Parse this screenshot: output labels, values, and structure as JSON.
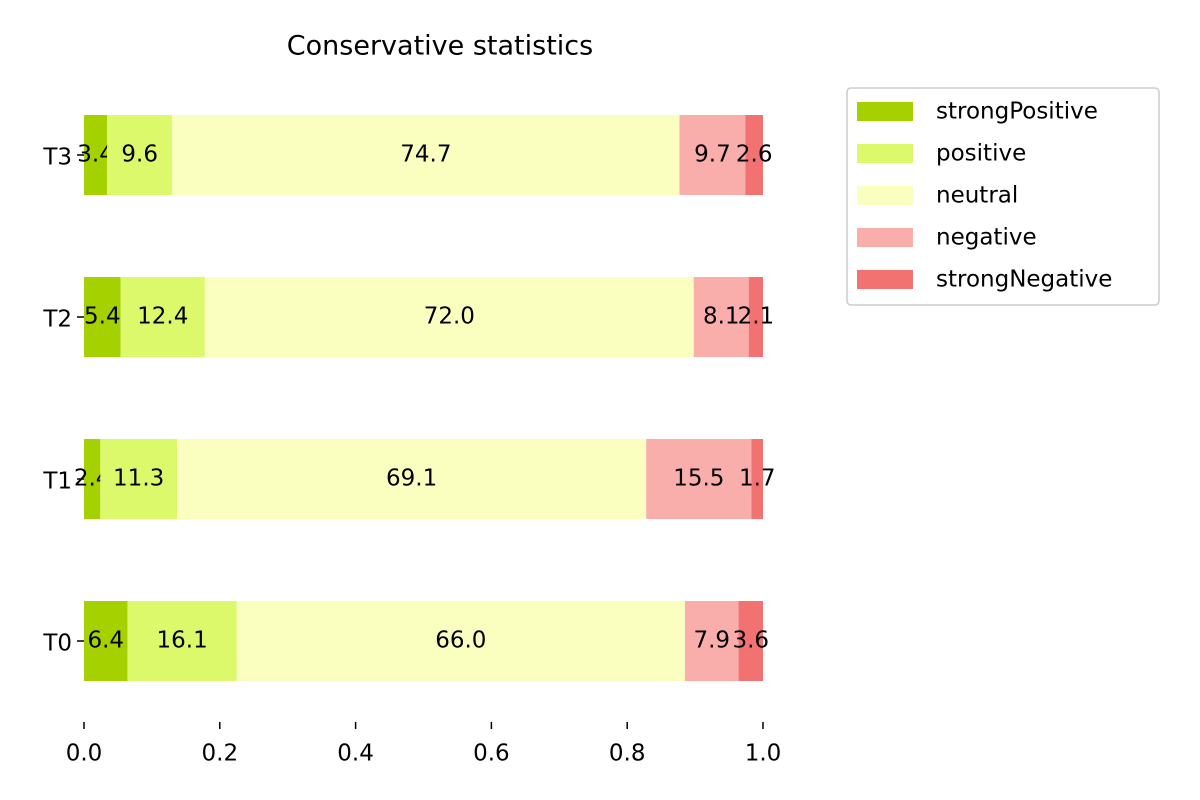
{
  "chart_data": {
    "type": "stacked-barh",
    "title": "Conservative statistics",
    "categories": [
      "T0",
      "T1",
      "T2",
      "T3"
    ],
    "series": [
      {
        "name": "strongPositive",
        "color": "#a6d100",
        "values": [
          0.064,
          0.024,
          0.054,
          0.034
        ],
        "value_labels": [
          "6.4",
          "2.4",
          "5.4",
          "3.4"
        ]
      },
      {
        "name": "positive",
        "color": "#dbf96b",
        "values": [
          0.161,
          0.113,
          0.124,
          0.096
        ],
        "value_labels": [
          "16.1",
          "11.3",
          "12.4",
          "9.6"
        ]
      },
      {
        "name": "neutral",
        "color": "#faffc0",
        "values": [
          0.66,
          0.691,
          0.72,
          0.747
        ],
        "value_labels": [
          "66.0",
          "69.1",
          "72.0",
          "74.7"
        ]
      },
      {
        "name": "negative",
        "color": "#f9aeac",
        "values": [
          0.079,
          0.155,
          0.081,
          0.097
        ],
        "value_labels": [
          "7.9",
          "15.5",
          "8.1",
          "9.7"
        ]
      },
      {
        "name": "strongNegative",
        "color": "#f27171",
        "values": [
          0.036,
          0.017,
          0.021,
          0.026
        ],
        "value_labels": [
          "3.6",
          "1.7",
          "2.1",
          "2.6"
        ]
      }
    ],
    "xlim": [
      0,
      1
    ],
    "xticks": [
      {
        "value": 0,
        "label": "0.0"
      },
      0.2,
      0.4,
      0.6,
      0.8,
      {
        "value": 1,
        "label": "1.0"
      }
    ],
    "legend": "upper-right-outside"
  }
}
